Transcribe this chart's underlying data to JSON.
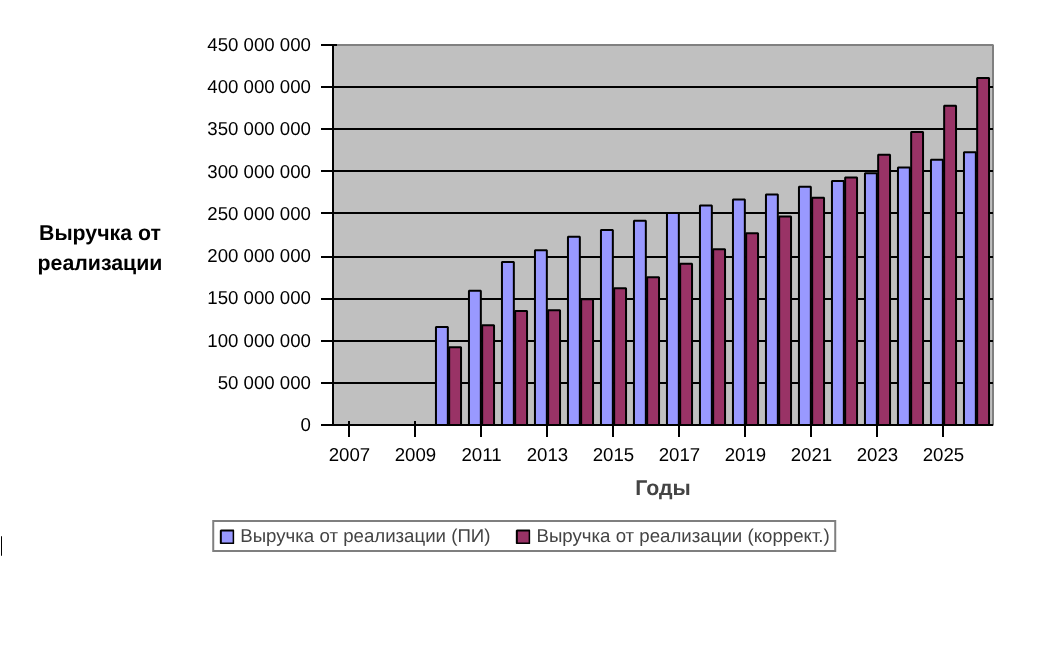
{
  "chart_data": {
    "type": "bar",
    "xlabel": "Годы",
    "ylabel": "Выручка от реализации",
    "categories": [
      "2007",
      null,
      "2009",
      null,
      "2011",
      null,
      "2013",
      null,
      "2015",
      null,
      "2017",
      null,
      "2019",
      null,
      "2021",
      null,
      "2023",
      null,
      "2025",
      null
    ],
    "series": [
      {
        "name": "Выручка от реализации (ПИ)",
        "color": "#9999ff",
        "values": [
          0,
          0,
          0,
          116000000,
          159000000,
          193000000,
          207000000,
          223000000,
          231000000,
          242000000,
          251000000,
          260000000,
          267000000,
          273000000,
          282000000,
          289000000,
          298000000,
          305000000,
          314000000,
          323000000
        ]
      },
      {
        "name": "Выручка от реализации (коррект.)",
        "color": "#993366",
        "values": [
          0,
          0,
          0,
          92000000,
          118000000,
          135000000,
          136000000,
          149000000,
          162000000,
          175000000,
          191000000,
          208000000,
          227000000,
          247000000,
          269000000,
          293000000,
          320000000,
          347000000,
          378000000,
          411000000
        ]
      }
    ],
    "ylim": [
      0,
      450000000
    ],
    "yticks": [
      0,
      {
        "value": 50000000,
        "label": "50 000 000"
      },
      {
        "value": 100000000,
        "label": "100 000 000"
      },
      {
        "value": 150000000,
        "label": "150 000 000"
      },
      {
        "value": 200000000,
        "label": "200 000 000"
      },
      {
        "value": 250000000,
        "label": "250 000 000"
      },
      {
        "value": 300000000,
        "label": "300 000 000"
      },
      {
        "value": 350000000,
        "label": "350 000 000"
      },
      {
        "value": 400000000,
        "label": "400 000 000"
      },
      {
        "value": 450000000,
        "label": "450 000 000"
      }
    ],
    "grid": "y",
    "legend": "bottom"
  }
}
